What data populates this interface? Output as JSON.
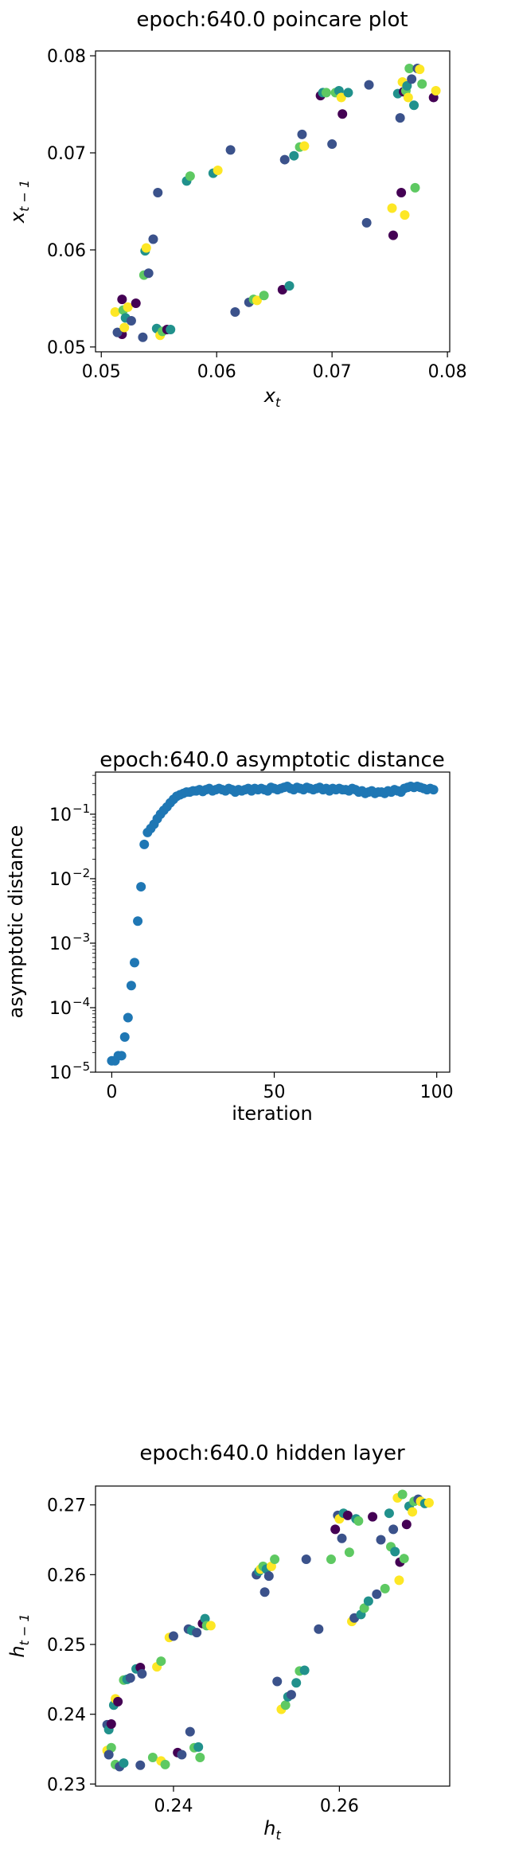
{
  "chart_data": [
    {
      "type": "scatter",
      "title": "epoch:640.0 poincare plot",
      "xlabel": "x_t",
      "ylabel": "x_{t-1}",
      "xlim": [
        0.0495,
        0.0802
      ],
      "ylim": [
        0.0495,
        0.0805
      ],
      "xticks": [
        0.05,
        0.06,
        0.07,
        0.08
      ],
      "xtick_labels": [
        "0.05",
        "0.06",
        "0.07",
        "0.08"
      ],
      "yticks": [
        0.05,
        0.06,
        0.07,
        0.08
      ],
      "ytick_labels": [
        "0.05",
        "0.06",
        "0.07",
        "0.08"
      ],
      "grid": false,
      "colormap": [
        "#440154",
        "#3b528b",
        "#21918c",
        "#5ec962",
        "#fde725"
      ],
      "points": [
        {
          "x": 0.0518,
          "y": 0.0513,
          "c": 0
        },
        {
          "x": 0.0512,
          "y": 0.0536,
          "c": 4
        },
        {
          "x": 0.0514,
          "y": 0.0515,
          "c": 1
        },
        {
          "x": 0.0518,
          "y": 0.0549,
          "c": 0
        },
        {
          "x": 0.0519,
          "y": 0.0538,
          "c": 3
        },
        {
          "x": 0.052,
          "y": 0.052,
          "c": 4
        },
        {
          "x": 0.0521,
          "y": 0.053,
          "c": 2
        },
        {
          "x": 0.0523,
          "y": 0.0541,
          "c": 4
        },
        {
          "x": 0.0526,
          "y": 0.0527,
          "c": 1
        },
        {
          "x": 0.053,
          "y": 0.0545,
          "c": 0
        },
        {
          "x": 0.0536,
          "y": 0.051,
          "c": 1
        },
        {
          "x": 0.0537,
          "y": 0.0574,
          "c": 3
        },
        {
          "x": 0.0538,
          "y": 0.0599,
          "c": 2
        },
        {
          "x": 0.0539,
          "y": 0.0602,
          "c": 4
        },
        {
          "x": 0.0541,
          "y": 0.0576,
          "c": 1
        },
        {
          "x": 0.0545,
          "y": 0.0611,
          "c": 1
        },
        {
          "x": 0.0548,
          "y": 0.0519,
          "c": 2
        },
        {
          "x": 0.0549,
          "y": 0.0659,
          "c": 1
        },
        {
          "x": 0.0551,
          "y": 0.0512,
          "c": 4
        },
        {
          "x": 0.0553,
          "y": 0.0516,
          "c": 3
        },
        {
          "x": 0.0557,
          "y": 0.0518,
          "c": 0
        },
        {
          "x": 0.056,
          "y": 0.0518,
          "c": 2
        },
        {
          "x": 0.0574,
          "y": 0.0671,
          "c": 2
        },
        {
          "x": 0.0577,
          "y": 0.0676,
          "c": 3
        },
        {
          "x": 0.0597,
          "y": 0.0679,
          "c": 2
        },
        {
          "x": 0.0601,
          "y": 0.0682,
          "c": 4
        },
        {
          "x": 0.0612,
          "y": 0.0703,
          "c": 1
        },
        {
          "x": 0.0616,
          "y": 0.0536,
          "c": 1
        },
        {
          "x": 0.0628,
          "y": 0.0546,
          "c": 1
        },
        {
          "x": 0.0632,
          "y": 0.0549,
          "c": 3
        },
        {
          "x": 0.0635,
          "y": 0.0548,
          "c": 4
        },
        {
          "x": 0.0641,
          "y": 0.0553,
          "c": 3
        },
        {
          "x": 0.0657,
          "y": 0.0559,
          "c": 0
        },
        {
          "x": 0.0659,
          "y": 0.0693,
          "c": 1
        },
        {
          "x": 0.0663,
          "y": 0.0563,
          "c": 2
        },
        {
          "x": 0.0667,
          "y": 0.0697,
          "c": 2
        },
        {
          "x": 0.0672,
          "y": 0.0706,
          "c": 3
        },
        {
          "x": 0.0674,
          "y": 0.0719,
          "c": 1
        },
        {
          "x": 0.0676,
          "y": 0.0707,
          "c": 4
        },
        {
          "x": 0.069,
          "y": 0.0759,
          "c": 0
        },
        {
          "x": 0.0692,
          "y": 0.0762,
          "c": 2
        },
        {
          "x": 0.0695,
          "y": 0.0762,
          "c": 3
        },
        {
          "x": 0.07,
          "y": 0.0709,
          "c": 1
        },
        {
          "x": 0.0703,
          "y": 0.0762,
          "c": 3
        },
        {
          "x": 0.0706,
          "y": 0.0764,
          "c": 2
        },
        {
          "x": 0.0708,
          "y": 0.0757,
          "c": 4
        },
        {
          "x": 0.0709,
          "y": 0.074,
          "c": 0
        },
        {
          "x": 0.0714,
          "y": 0.0762,
          "c": 2
        },
        {
          "x": 0.073,
          "y": 0.0628,
          "c": 1
        },
        {
          "x": 0.0732,
          "y": 0.077,
          "c": 1
        },
        {
          "x": 0.0752,
          "y": 0.0643,
          "c": 4
        },
        {
          "x": 0.0753,
          "y": 0.0615,
          "c": 0
        },
        {
          "x": 0.0757,
          "y": 0.0761,
          "c": 2
        },
        {
          "x": 0.0759,
          "y": 0.0736,
          "c": 1
        },
        {
          "x": 0.076,
          "y": 0.0659,
          "c": 0
        },
        {
          "x": 0.0761,
          "y": 0.0773,
          "c": 4
        },
        {
          "x": 0.0762,
          "y": 0.0763,
          "c": 0
        },
        {
          "x": 0.0763,
          "y": 0.0636,
          "c": 4
        },
        {
          "x": 0.0764,
          "y": 0.0764,
          "c": 3
        },
        {
          "x": 0.0765,
          "y": 0.0769,
          "c": 2
        },
        {
          "x": 0.0766,
          "y": 0.0757,
          "c": 4
        },
        {
          "x": 0.0767,
          "y": 0.0787,
          "c": 3
        },
        {
          "x": 0.0769,
          "y": 0.0776,
          "c": 1
        },
        {
          "x": 0.0771,
          "y": 0.0749,
          "c": 2
        },
        {
          "x": 0.0772,
          "y": 0.0664,
          "c": 3
        },
        {
          "x": 0.0774,
          "y": 0.0787,
          "c": 1
        },
        {
          "x": 0.0776,
          "y": 0.0786,
          "c": 4
        },
        {
          "x": 0.0778,
          "y": 0.0771,
          "c": 3
        },
        {
          "x": 0.0788,
          "y": 0.0757,
          "c": 0
        },
        {
          "x": 0.079,
          "y": 0.0764,
          "c": 4
        }
      ]
    },
    {
      "type": "scatter",
      "title": "epoch:640.0 asymptotic distance",
      "xlabel": "iteration",
      "ylabel": "asymptotic distance",
      "yscale": "log",
      "xlim": [
        -5,
        104
      ],
      "ylim": [
        1e-05,
        0.45
      ],
      "xticks": [
        0,
        50,
        100
      ],
      "xtick_labels": [
        "0",
        "50",
        "100"
      ],
      "yticks": [
        1e-05,
        0.0001,
        0.001,
        0.01,
        0.1
      ],
      "ytick_labels": [
        "10",
        "10",
        "10",
        "10",
        "10"
      ],
      "ytick_exponents": [
        "−5",
        "−4",
        "−3",
        "−2",
        "−1"
      ],
      "grid": false,
      "color": "#1f77b4",
      "x": [
        0,
        1,
        2,
        3,
        4,
        5,
        6,
        7,
        8,
        9,
        10,
        11,
        12,
        13,
        14,
        15,
        16,
        17,
        18,
        19,
        20,
        21,
        22,
        23,
        24,
        25,
        26,
        27,
        28,
        29,
        30,
        31,
        32,
        33,
        34,
        35,
        36,
        37,
        38,
        39,
        40,
        41,
        42,
        43,
        44,
        45,
        46,
        47,
        48,
        49,
        50,
        51,
        52,
        53,
        54,
        55,
        56,
        57,
        58,
        59,
        60,
        61,
        62,
        63,
        64,
        65,
        66,
        67,
        68,
        69,
        70,
        71,
        72,
        73,
        74,
        75,
        76,
        77,
        78,
        79,
        80,
        81,
        82,
        83,
        84,
        85,
        86,
        87,
        88,
        89,
        90,
        91,
        92,
        93,
        94,
        95,
        96,
        97,
        98,
        99
      ],
      "y": [
        1.5e-05,
        1.5e-05,
        1.8e-05,
        1.8e-05,
        3.5e-05,
        7e-05,
        0.00022,
        0.0005,
        0.0022,
        0.0075,
        0.034,
        0.052,
        0.06,
        0.07,
        0.085,
        0.1,
        0.115,
        0.13,
        0.15,
        0.17,
        0.19,
        0.2,
        0.21,
        0.22,
        0.22,
        0.23,
        0.23,
        0.24,
        0.225,
        0.24,
        0.25,
        0.23,
        0.24,
        0.25,
        0.24,
        0.23,
        0.25,
        0.24,
        0.22,
        0.24,
        0.23,
        0.24,
        0.25,
        0.23,
        0.25,
        0.24,
        0.25,
        0.24,
        0.23,
        0.26,
        0.25,
        0.24,
        0.25,
        0.26,
        0.27,
        0.25,
        0.24,
        0.26,
        0.25,
        0.24,
        0.26,
        0.25,
        0.24,
        0.25,
        0.26,
        0.24,
        0.25,
        0.23,
        0.25,
        0.24,
        0.25,
        0.24,
        0.24,
        0.23,
        0.25,
        0.24,
        0.22,
        0.23,
        0.21,
        0.22,
        0.23,
        0.21,
        0.22,
        0.22,
        0.21,
        0.23,
        0.22,
        0.24,
        0.23,
        0.22,
        0.25,
        0.26,
        0.27,
        0.26,
        0.27,
        0.26,
        0.25,
        0.24,
        0.25,
        0.24
      ]
    },
    {
      "type": "scatter",
      "title": "epoch:640.0 hidden layer",
      "xlabel": "h_t",
      "ylabel": "h_{t-1}",
      "xlim": [
        0.2306,
        0.2733
      ],
      "ylim": [
        0.2297,
        0.2727
      ],
      "xticks": [
        0.24,
        0.26
      ],
      "xtick_labels": [
        "0.24",
        "0.26"
      ],
      "yticks": [
        0.23,
        0.24,
        0.25,
        0.26,
        0.27
      ],
      "ytick_labels": [
        "0.23",
        "0.24",
        "0.25",
        "0.26",
        "0.27"
      ],
      "grid": false,
      "colormap": [
        "#440154",
        "#3b528b",
        "#21918c",
        "#5ec962",
        "#fde725"
      ],
      "points": [
        {
          "x": 0.232,
          "y": 0.2385,
          "c": 1
        },
        {
          "x": 0.2322,
          "y": 0.2378,
          "c": 2
        },
        {
          "x": 0.2325,
          "y": 0.2386,
          "c": 0
        },
        {
          "x": 0.232,
          "y": 0.2348,
          "c": 4
        },
        {
          "x": 0.2325,
          "y": 0.2352,
          "c": 3
        },
        {
          "x": 0.2322,
          "y": 0.2342,
          "c": 1
        },
        {
          "x": 0.2328,
          "y": 0.2413,
          "c": 2
        },
        {
          "x": 0.233,
          "y": 0.2422,
          "c": 4
        },
        {
          "x": 0.2333,
          "y": 0.2418,
          "c": 0
        },
        {
          "x": 0.233,
          "y": 0.2328,
          "c": 3
        },
        {
          "x": 0.2335,
          "y": 0.2325,
          "c": 1
        },
        {
          "x": 0.234,
          "y": 0.233,
          "c": 2
        },
        {
          "x": 0.234,
          "y": 0.2449,
          "c": 3
        },
        {
          "x": 0.2344,
          "y": 0.245,
          "c": 2
        },
        {
          "x": 0.2348,
          "y": 0.2452,
          "c": 1
        },
        {
          "x": 0.2355,
          "y": 0.2465,
          "c": 2
        },
        {
          "x": 0.236,
          "y": 0.2467,
          "c": 0
        },
        {
          "x": 0.2362,
          "y": 0.2458,
          "c": 1
        },
        {
          "x": 0.236,
          "y": 0.2327,
          "c": 1
        },
        {
          "x": 0.2375,
          "y": 0.2338,
          "c": 3
        },
        {
          "x": 0.238,
          "y": 0.2468,
          "c": 4
        },
        {
          "x": 0.2385,
          "y": 0.2476,
          "c": 3
        },
        {
          "x": 0.2385,
          "y": 0.2333,
          "c": 4
        },
        {
          "x": 0.239,
          "y": 0.2328,
          "c": 3
        },
        {
          "x": 0.2395,
          "y": 0.251,
          "c": 4
        },
        {
          "x": 0.24,
          "y": 0.2512,
          "c": 1
        },
        {
          "x": 0.2405,
          "y": 0.2345,
          "c": 0
        },
        {
          "x": 0.241,
          "y": 0.2342,
          "c": 1
        },
        {
          "x": 0.2418,
          "y": 0.2522,
          "c": 1
        },
        {
          "x": 0.2422,
          "y": 0.252,
          "c": 2
        },
        {
          "x": 0.242,
          "y": 0.2375,
          "c": 1
        },
        {
          "x": 0.2425,
          "y": 0.2352,
          "c": 3
        },
        {
          "x": 0.2428,
          "y": 0.2517,
          "c": 1
        },
        {
          "x": 0.243,
          "y": 0.2353,
          "c": 2
        },
        {
          "x": 0.2432,
          "y": 0.2338,
          "c": 3
        },
        {
          "x": 0.2435,
          "y": 0.253,
          "c": 0
        },
        {
          "x": 0.2438,
          "y": 0.2537,
          "c": 2
        },
        {
          "x": 0.244,
          "y": 0.2527,
          "c": 3
        },
        {
          "x": 0.2445,
          "y": 0.2527,
          "c": 4
        },
        {
          "x": 0.25,
          "y": 0.26,
          "c": 1
        },
        {
          "x": 0.2503,
          "y": 0.2605,
          "c": 2
        },
        {
          "x": 0.2505,
          "y": 0.2608,
          "c": 4
        },
        {
          "x": 0.2508,
          "y": 0.2612,
          "c": 3
        },
        {
          "x": 0.251,
          "y": 0.2575,
          "c": 1
        },
        {
          "x": 0.2512,
          "y": 0.2608,
          "c": 2
        },
        {
          "x": 0.2515,
          "y": 0.2598,
          "c": 1
        },
        {
          "x": 0.2518,
          "y": 0.2612,
          "c": 4
        },
        {
          "x": 0.2522,
          "y": 0.2622,
          "c": 3
        },
        {
          "x": 0.2525,
          "y": 0.2447,
          "c": 1
        },
        {
          "x": 0.253,
          "y": 0.2407,
          "c": 4
        },
        {
          "x": 0.2535,
          "y": 0.2413,
          "c": 3
        },
        {
          "x": 0.2538,
          "y": 0.2425,
          "c": 2
        },
        {
          "x": 0.2542,
          "y": 0.2428,
          "c": 1
        },
        {
          "x": 0.2548,
          "y": 0.2445,
          "c": 2
        },
        {
          "x": 0.2552,
          "y": 0.2462,
          "c": 3
        },
        {
          "x": 0.2558,
          "y": 0.2463,
          "c": 2
        },
        {
          "x": 0.256,
          "y": 0.2622,
          "c": 1
        },
        {
          "x": 0.2575,
          "y": 0.2522,
          "c": 1
        },
        {
          "x": 0.259,
          "y": 0.2622,
          "c": 3
        },
        {
          "x": 0.2595,
          "y": 0.2665,
          "c": 0
        },
        {
          "x": 0.2598,
          "y": 0.2685,
          "c": 1
        },
        {
          "x": 0.26,
          "y": 0.268,
          "c": 4
        },
        {
          "x": 0.2603,
          "y": 0.2652,
          "c": 1
        },
        {
          "x": 0.2605,
          "y": 0.2688,
          "c": 2
        },
        {
          "x": 0.261,
          "y": 0.2685,
          "c": 0
        },
        {
          "x": 0.2612,
          "y": 0.2632,
          "c": 3
        },
        {
          "x": 0.2615,
          "y": 0.2533,
          "c": 4
        },
        {
          "x": 0.2618,
          "y": 0.2538,
          "c": 1
        },
        {
          "x": 0.262,
          "y": 0.268,
          "c": 2
        },
        {
          "x": 0.2623,
          "y": 0.2677,
          "c": 3
        },
        {
          "x": 0.2626,
          "y": 0.2543,
          "c": 2
        },
        {
          "x": 0.263,
          "y": 0.2552,
          "c": 3
        },
        {
          "x": 0.2635,
          "y": 0.2562,
          "c": 2
        },
        {
          "x": 0.264,
          "y": 0.2683,
          "c": 0
        },
        {
          "x": 0.2645,
          "y": 0.2572,
          "c": 1
        },
        {
          "x": 0.265,
          "y": 0.265,
          "c": 1
        },
        {
          "x": 0.2655,
          "y": 0.258,
          "c": 3
        },
        {
          "x": 0.266,
          "y": 0.2688,
          "c": 2
        },
        {
          "x": 0.2662,
          "y": 0.264,
          "c": 3
        },
        {
          "x": 0.2665,
          "y": 0.2665,
          "c": 1
        },
        {
          "x": 0.2667,
          "y": 0.2633,
          "c": 2
        },
        {
          "x": 0.267,
          "y": 0.271,
          "c": 4
        },
        {
          "x": 0.2672,
          "y": 0.2592,
          "c": 4
        },
        {
          "x": 0.2673,
          "y": 0.2618,
          "c": 0
        },
        {
          "x": 0.2676,
          "y": 0.2715,
          "c": 3
        },
        {
          "x": 0.2678,
          "y": 0.2623,
          "c": 3
        },
        {
          "x": 0.2681,
          "y": 0.2672,
          "c": 0
        },
        {
          "x": 0.2684,
          "y": 0.2698,
          "c": 2
        },
        {
          "x": 0.2688,
          "y": 0.269,
          "c": 4
        },
        {
          "x": 0.269,
          "y": 0.2705,
          "c": 3
        },
        {
          "x": 0.2695,
          "y": 0.2708,
          "c": 1
        },
        {
          "x": 0.2698,
          "y": 0.2705,
          "c": 4
        },
        {
          "x": 0.2703,
          "y": 0.2702,
          "c": 2
        },
        {
          "x": 0.2708,
          "y": 0.2703,
          "c": 4
        }
      ]
    }
  ]
}
